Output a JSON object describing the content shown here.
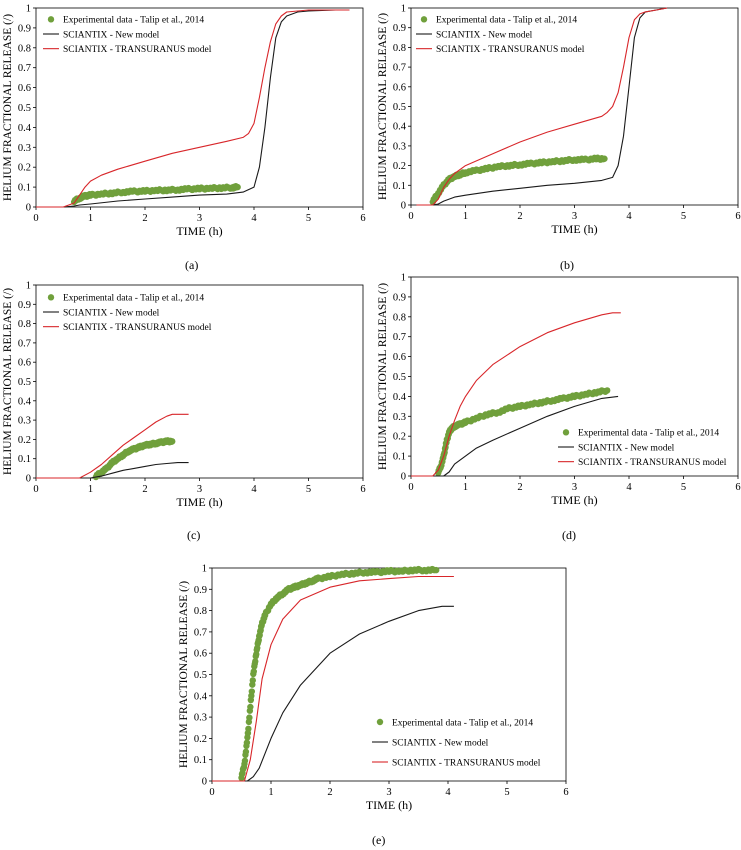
{
  "common": {
    "xlabel": "TIME (h)",
    "ylabel": "HELIUM FRACTIONAL RELEASE (/)",
    "legend_labels": [
      "Experimental data - Talip et al., 2014",
      "SCIANTIX - New model",
      "SCIANTIX - TRANSURANUS model"
    ],
    "colors": {
      "experimental": "#70a03c",
      "new_model": "#1a1a1a",
      "transuranus": "#d8262a"
    }
  },
  "chart_data": [
    {
      "panel": "(a)",
      "type": "line",
      "legend": "top-left",
      "xlabel": "TIME (h)",
      "ylabel": "HELIUM FRACTIONAL RELEASE (/)",
      "xlim": [
        0,
        6
      ],
      "ylim": [
        0,
        1
      ],
      "xticks": [
        "0",
        "1",
        "2",
        "3",
        "4",
        "5",
        "6"
      ],
      "yticks": [
        "0",
        "0.1",
        "0.2",
        "0.3",
        "0.4",
        "0.5",
        "0.6",
        "0.7",
        "0.8",
        "0.9",
        "1"
      ],
      "series": [
        {
          "name": "Experimental data - Talip et al., 2014",
          "kind": "scatter",
          "x": [
            0.7,
            0.8,
            0.9,
            1.0,
            1.2,
            1.4,
            1.6,
            1.8,
            2.0,
            2.2,
            2.4,
            2.6,
            2.8,
            3.0,
            3.2,
            3.4,
            3.6,
            3.7
          ],
          "y": [
            0.03,
            0.045,
            0.055,
            0.06,
            0.065,
            0.07,
            0.075,
            0.078,
            0.08,
            0.083,
            0.085,
            0.087,
            0.09,
            0.092,
            0.094,
            0.096,
            0.098,
            0.1
          ]
        },
        {
          "name": "SCIANTIX - New model",
          "kind": "line",
          "x": [
            0,
            0.5,
            0.7,
            0.8,
            1.0,
            1.5,
            2.0,
            2.5,
            3.0,
            3.5,
            3.8,
            4.0,
            4.1,
            4.2,
            4.3,
            4.4,
            4.5,
            4.6,
            4.8,
            5.0,
            5.5,
            5.75
          ],
          "y": [
            0,
            0,
            0.005,
            0.01,
            0.015,
            0.03,
            0.04,
            0.05,
            0.06,
            0.065,
            0.075,
            0.1,
            0.2,
            0.4,
            0.65,
            0.85,
            0.93,
            0.96,
            0.98,
            0.985,
            0.99,
            0.99
          ]
        },
        {
          "name": "SCIANTIX - TRANSURANUS model",
          "kind": "line",
          "x": [
            0,
            0.5,
            0.7,
            0.8,
            0.9,
            1.0,
            1.2,
            1.5,
            2.0,
            2.5,
            3.0,
            3.5,
            3.8,
            3.9,
            4.0,
            4.1,
            4.2,
            4.3,
            4.4,
            4.5,
            4.6,
            4.8,
            5.0,
            5.5,
            5.75
          ],
          "y": [
            0,
            0,
            0.02,
            0.06,
            0.1,
            0.13,
            0.16,
            0.19,
            0.23,
            0.27,
            0.3,
            0.33,
            0.35,
            0.37,
            0.42,
            0.55,
            0.7,
            0.83,
            0.92,
            0.96,
            0.98,
            0.985,
            0.99,
            0.99,
            0.99
          ]
        }
      ]
    },
    {
      "panel": "(b)",
      "type": "line",
      "legend": "top-left",
      "xlabel": "TIME (h)",
      "ylabel": "HELIUM FRACTIONAL RELEASE (/)",
      "xlim": [
        0,
        6
      ],
      "ylim": [
        0,
        1
      ],
      "xticks": [
        "0",
        "1",
        "2",
        "3",
        "4",
        "5",
        "6"
      ],
      "yticks": [
        "0",
        "0.1",
        "0.2",
        "0.3",
        "0.4",
        "0.5",
        "0.6",
        "0.7",
        "0.8",
        "0.9",
        "1"
      ],
      "series": [
        {
          "name": "Experimental data - Talip et al., 2014",
          "kind": "scatter",
          "x": [
            0.4,
            0.5,
            0.6,
            0.7,
            0.8,
            0.9,
            1.0,
            1.2,
            1.4,
            1.6,
            1.8,
            2.0,
            2.2,
            2.4,
            2.6,
            2.8,
            3.0,
            3.2,
            3.4,
            3.55
          ],
          "y": [
            0.02,
            0.06,
            0.1,
            0.13,
            0.145,
            0.155,
            0.165,
            0.175,
            0.185,
            0.195,
            0.2,
            0.205,
            0.21,
            0.215,
            0.22,
            0.225,
            0.23,
            0.23,
            0.235,
            0.235
          ]
        },
        {
          "name": "SCIANTIX - New model",
          "kind": "line",
          "x": [
            0.1,
            0.4,
            0.5,
            0.6,
            0.8,
            1.0,
            1.5,
            2.0,
            2.5,
            3.0,
            3.5,
            3.7,
            3.8,
            3.9,
            4.0,
            4.1,
            4.2,
            4.3,
            4.5,
            4.7
          ],
          "y": [
            0,
            0,
            0.005,
            0.02,
            0.04,
            0.05,
            0.07,
            0.085,
            0.1,
            0.11,
            0.125,
            0.14,
            0.2,
            0.35,
            0.6,
            0.85,
            0.95,
            0.98,
            0.99,
            1.0
          ]
        },
        {
          "name": "SCIANTIX - TRANSURANUS model",
          "kind": "line",
          "x": [
            0.1,
            0.4,
            0.5,
            0.6,
            0.7,
            0.8,
            1.0,
            1.5,
            2.0,
            2.5,
            3.0,
            3.5,
            3.6,
            3.7,
            3.8,
            3.9,
            4.0,
            4.1,
            4.2,
            4.3,
            4.5,
            4.7
          ],
          "y": [
            0,
            0,
            0.03,
            0.09,
            0.13,
            0.16,
            0.2,
            0.26,
            0.32,
            0.37,
            0.41,
            0.45,
            0.47,
            0.5,
            0.57,
            0.7,
            0.85,
            0.94,
            0.97,
            0.98,
            0.99,
            1.0
          ]
        }
      ]
    },
    {
      "panel": "(c)",
      "type": "line",
      "legend": "top-left",
      "xlabel": "TIME (h)",
      "ylabel": "HELIUM FRACTIONAL RELEASE (/)",
      "xlim": [
        0,
        6
      ],
      "ylim": [
        0,
        1
      ],
      "xticks": [
        "0",
        "1",
        "2",
        "3",
        "4",
        "5",
        "6"
      ],
      "yticks": [
        "0",
        "0.1",
        "0.2",
        "0.3",
        "0.4",
        "0.5",
        "0.6",
        "0.7",
        "0.8",
        "0.9",
        "1"
      ],
      "series": [
        {
          "name": "Experimental data - Talip et al., 2014",
          "kind": "scatter",
          "x": [
            1.1,
            1.2,
            1.3,
            1.4,
            1.5,
            1.6,
            1.7,
            1.8,
            1.9,
            2.0,
            2.1,
            2.2,
            2.3,
            2.4,
            2.5
          ],
          "y": [
            0.01,
            0.03,
            0.05,
            0.08,
            0.1,
            0.12,
            0.14,
            0.15,
            0.16,
            0.17,
            0.175,
            0.18,
            0.185,
            0.19,
            0.19
          ]
        },
        {
          "name": "SCIANTIX - New model",
          "kind": "line",
          "x": [
            0,
            1.0,
            1.2,
            1.4,
            1.6,
            1.8,
            2.0,
            2.2,
            2.4,
            2.6,
            2.8
          ],
          "y": [
            0,
            0,
            0.01,
            0.025,
            0.04,
            0.05,
            0.06,
            0.07,
            0.075,
            0.08,
            0.08
          ]
        },
        {
          "name": "SCIANTIX - TRANSURANUS model",
          "kind": "line",
          "x": [
            0,
            0.8,
            1.0,
            1.2,
            1.4,
            1.6,
            1.8,
            2.0,
            2.2,
            2.4,
            2.5,
            2.6,
            2.8
          ],
          "y": [
            0,
            0,
            0.03,
            0.07,
            0.12,
            0.17,
            0.21,
            0.25,
            0.29,
            0.32,
            0.33,
            0.33,
            0.33
          ]
        }
      ]
    },
    {
      "panel": "(d)",
      "type": "line",
      "legend": "bottom-right",
      "xlabel": "TIME (h)",
      "ylabel": "HELIUM FRACTIONAL RELEASE (/)",
      "xlim": [
        0,
        6
      ],
      "ylim": [
        0,
        1
      ],
      "xticks": [
        "0",
        "1",
        "2",
        "3",
        "4",
        "5",
        "6"
      ],
      "yticks": [
        "0",
        "0.1",
        "0.2",
        "0.3",
        "0.4",
        "0.5",
        "0.6",
        "0.7",
        "0.8",
        "0.9",
        "1"
      ],
      "series": [
        {
          "name": "Experimental data - Talip et al., 2014",
          "kind": "scatter",
          "x": [
            0.5,
            0.55,
            0.6,
            0.65,
            0.7,
            0.75,
            0.8,
            0.9,
            1.0,
            1.2,
            1.4,
            1.6,
            1.8,
            2.0,
            2.2,
            2.4,
            2.6,
            2.8,
            3.0,
            3.2,
            3.4,
            3.6
          ],
          "y": [
            0.02,
            0.05,
            0.1,
            0.17,
            0.22,
            0.24,
            0.25,
            0.26,
            0.27,
            0.29,
            0.31,
            0.32,
            0.34,
            0.35,
            0.36,
            0.37,
            0.38,
            0.39,
            0.4,
            0.41,
            0.42,
            0.43
          ]
        },
        {
          "name": "SCIANTIX - New model",
          "kind": "line",
          "x": [
            0,
            0.6,
            0.7,
            0.8,
            1.0,
            1.2,
            1.5,
            2.0,
            2.5,
            3.0,
            3.5,
            3.8
          ],
          "y": [
            0,
            0,
            0.02,
            0.06,
            0.1,
            0.14,
            0.18,
            0.24,
            0.3,
            0.35,
            0.39,
            0.4
          ]
        },
        {
          "name": "SCIANTIX - TRANSURANUS model",
          "kind": "line",
          "x": [
            0,
            0.4,
            0.5,
            0.6,
            0.7,
            0.8,
            0.9,
            1.0,
            1.2,
            1.5,
            2.0,
            2.5,
            3.0,
            3.5,
            3.7,
            3.85
          ],
          "y": [
            0,
            0,
            0.03,
            0.1,
            0.2,
            0.28,
            0.35,
            0.4,
            0.48,
            0.56,
            0.65,
            0.72,
            0.77,
            0.81,
            0.82,
            0.82
          ]
        }
      ]
    },
    {
      "panel": "(e)",
      "type": "line",
      "legend": "bottom-right",
      "xlabel": "TIME (h)",
      "ylabel": "HELIUM FRACTIONAL RELEASE (/)",
      "xlim": [
        0,
        6
      ],
      "ylim": [
        0,
        1
      ],
      "xticks": [
        "0",
        "1",
        "2",
        "3",
        "4",
        "5",
        "6"
      ],
      "yticks": [
        "0",
        "0.1",
        "0.2",
        "0.3",
        "0.4",
        "0.5",
        "0.6",
        "0.7",
        "0.8",
        "0.9",
        "1"
      ],
      "series": [
        {
          "name": "Experimental data - Talip et al., 2014",
          "kind": "scatter",
          "x": [
            0.5,
            0.55,
            0.6,
            0.65,
            0.7,
            0.75,
            0.8,
            0.85,
            0.9,
            1.0,
            1.1,
            1.2,
            1.3,
            1.4,
            1.5,
            1.6,
            1.7,
            1.8,
            2.0,
            2.2,
            2.4,
            2.6,
            2.8,
            3.0,
            3.2,
            3.4,
            3.6,
            3.8
          ],
          "y": [
            0.02,
            0.08,
            0.2,
            0.35,
            0.5,
            0.6,
            0.68,
            0.74,
            0.78,
            0.83,
            0.86,
            0.88,
            0.9,
            0.91,
            0.92,
            0.93,
            0.94,
            0.95,
            0.96,
            0.97,
            0.975,
            0.98,
            0.98,
            0.985,
            0.985,
            0.99,
            0.99,
            0.99
          ]
        },
        {
          "name": "SCIANTIX - New model",
          "kind": "line",
          "x": [
            0,
            0.6,
            0.7,
            0.8,
            0.9,
            1.0,
            1.2,
            1.5,
            2.0,
            2.5,
            3.0,
            3.5,
            3.9,
            4.1
          ],
          "y": [
            0,
            0,
            0.02,
            0.06,
            0.13,
            0.2,
            0.32,
            0.45,
            0.6,
            0.69,
            0.75,
            0.8,
            0.82,
            0.82
          ]
        },
        {
          "name": "SCIANTIX - TRANSURANUS model",
          "kind": "line",
          "x": [
            0,
            0.55,
            0.65,
            0.75,
            0.85,
            1.0,
            1.2,
            1.5,
            2.0,
            2.5,
            3.0,
            3.5,
            3.8,
            4.1
          ],
          "y": [
            0,
            0,
            0.1,
            0.28,
            0.48,
            0.64,
            0.76,
            0.85,
            0.91,
            0.94,
            0.95,
            0.96,
            0.96,
            0.96
          ]
        }
      ]
    }
  ]
}
